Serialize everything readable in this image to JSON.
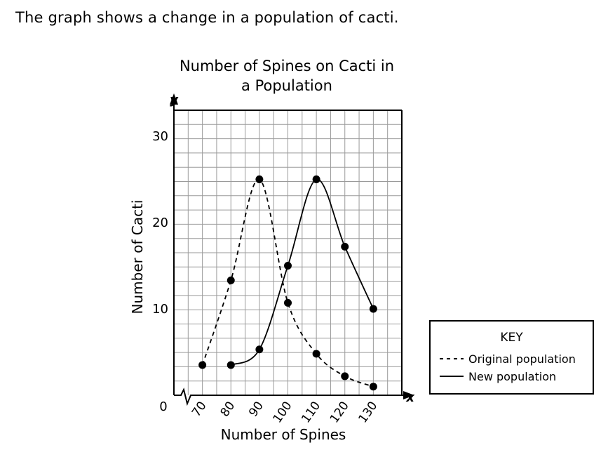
{
  "prompt": "The graph shows a change in a population of cacti.",
  "chart_data": {
    "type": "line",
    "title_line1": "Number of Spines on Cacti in",
    "title_line2": "a Population",
    "xlabel": "Number of Spines",
    "ylabel": "Number of Cacti",
    "x_axis_letter": "x",
    "y_axis_letter": "y",
    "origin_label": "0",
    "x_ticks": [
      70,
      80,
      90,
      100,
      110,
      120,
      130
    ],
    "y_ticks": [
      10,
      20,
      30
    ],
    "xlim": [
      60,
      140
    ],
    "ylim": [
      0,
      33
    ],
    "x_axis_break": true,
    "grid": true,
    "series": [
      {
        "name": "Original population",
        "style": "dashed",
        "points": [
          [
            70,
            3.5
          ],
          [
            80,
            13.3
          ],
          [
            90,
            25
          ],
          [
            100,
            10.7
          ],
          [
            110,
            4.8
          ],
          [
            120,
            2.2
          ],
          [
            130,
            1.0
          ]
        ]
      },
      {
        "name": "New population",
        "style": "solid",
        "points": [
          [
            80,
            3.5
          ],
          [
            90,
            5.3
          ],
          [
            100,
            15
          ],
          [
            110,
            25
          ],
          [
            120,
            17.2
          ],
          [
            130,
            10
          ]
        ]
      }
    ],
    "legend": {
      "title": "KEY",
      "position": "right",
      "entries": [
        "Original population",
        "New population"
      ]
    }
  }
}
